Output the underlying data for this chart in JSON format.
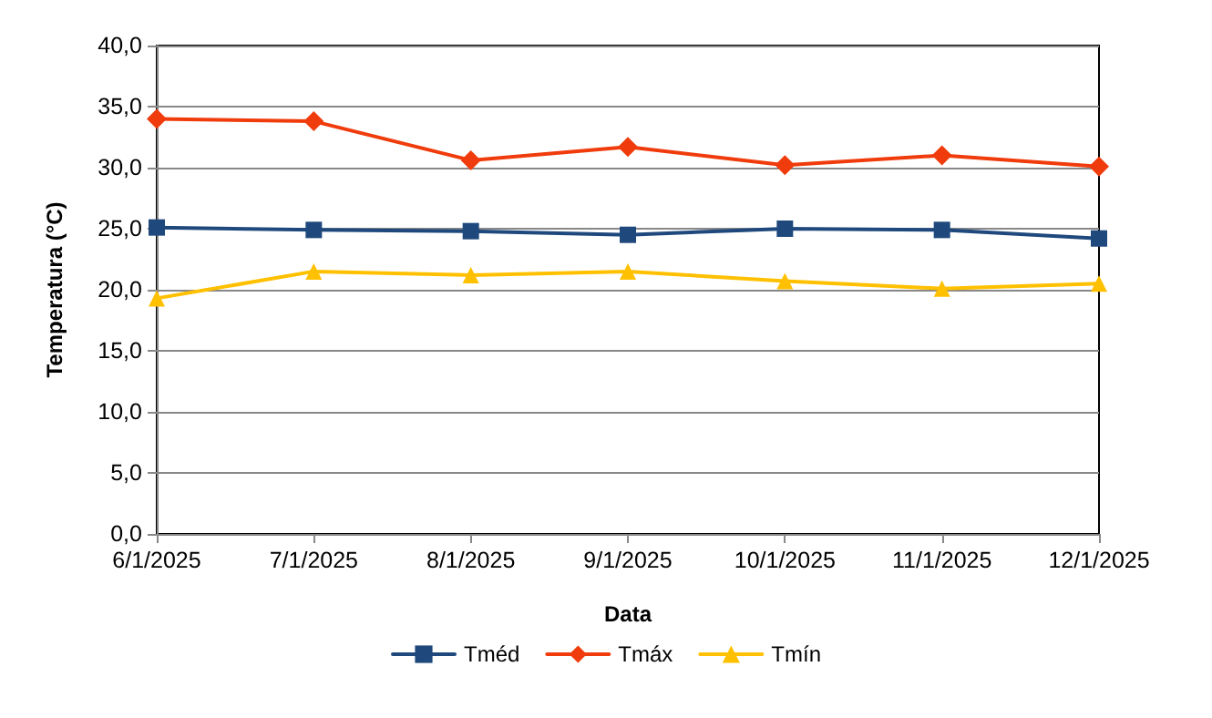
{
  "chart_data": {
    "type": "line",
    "xlabel": "Data",
    "ylabel": "Temperatura (°C)",
    "categories": [
      "6/1/2025",
      "7/1/2025",
      "8/1/2025",
      "9/1/2025",
      "10/1/2025",
      "11/1/2025",
      "12/1/2025"
    ],
    "series": [
      {
        "name": "Tméd",
        "color": "#1f497d",
        "marker": "square",
        "values": [
          25.1,
          24.9,
          24.8,
          24.5,
          25.0,
          24.9,
          24.2
        ]
      },
      {
        "name": "Tmáx",
        "color": "#f03c0c",
        "marker": "diamond",
        "values": [
          34.0,
          33.8,
          30.6,
          31.7,
          30.2,
          31.0,
          30.1
        ]
      },
      {
        "name": "Tmín",
        "color": "#ffc000",
        "marker": "triangle",
        "values": [
          19.3,
          21.5,
          21.2,
          21.5,
          20.7,
          20.1,
          20.5
        ]
      }
    ],
    "ylim": [
      0,
      40
    ],
    "yticks": [
      {
        "value": 0,
        "label": "0,0"
      },
      {
        "value": 5,
        "label": "5,0"
      },
      {
        "value": 10,
        "label": "10,0"
      },
      {
        "value": 15,
        "label": "15,0"
      },
      {
        "value": 20,
        "label": "20,0"
      },
      {
        "value": 25,
        "label": "25,0"
      },
      {
        "value": 30,
        "label": "30,0"
      },
      {
        "value": 35,
        "label": "35,0"
      },
      {
        "value": 40,
        "label": "40,0"
      }
    ],
    "grid": "y",
    "legend": "bottom",
    "line_style": "solid"
  }
}
